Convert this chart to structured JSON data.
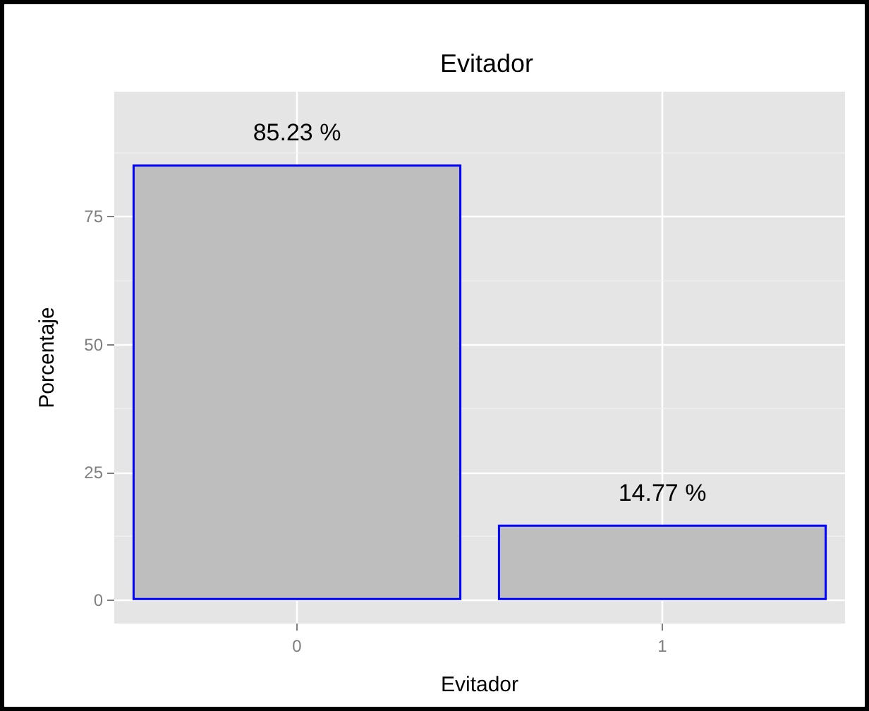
{
  "chart_data": {
    "type": "bar",
    "title": "Evitador",
    "xlabel": "Evitador",
    "ylabel": "Porcentaje",
    "categories": [
      "0",
      "1"
    ],
    "series": [
      {
        "color": "#bebebe",
        "values": [
          85.23,
          14.77
        ],
        "value_labels": [
          "85.23 %",
          "14.77 %"
        ]
      }
    ],
    "ylim": [
      -4.6,
      99.5
    ],
    "yticks": [
      0,
      25,
      50,
      75
    ],
    "grid": true
  }
}
